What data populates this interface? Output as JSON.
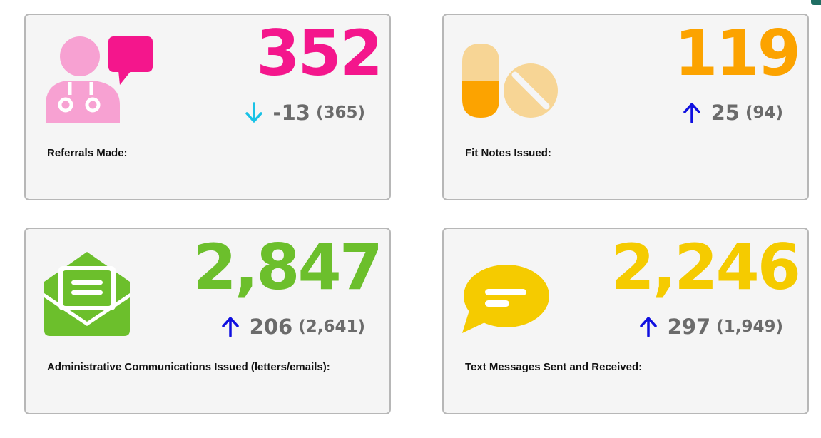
{
  "colors": {
    "pink": "#f4168c",
    "pink_light": "#f7a1d2",
    "orange": "#fca300",
    "orange_light": "#f7d595",
    "green": "#6cbf2c",
    "yellow": "#f5cb00",
    "arrow_up": "#1010e0",
    "arrow_down": "#19c2e6",
    "card_bg": "#f5f5f5",
    "card_border": "#b7b7b7",
    "muted_text": "#6b6b6b"
  },
  "cards": [
    {
      "id": "referrals",
      "icon": "doctor-chat-icon",
      "value": "352",
      "color": "#f4168c",
      "trend": "down",
      "change": "-13",
      "previous": "(365)",
      "label": "Referrals Made:"
    },
    {
      "id": "fit-notes",
      "icon": "pills-icon",
      "value": "119",
      "color": "#fca300",
      "trend": "up",
      "change": "25",
      "previous": "(94)",
      "label": "Fit Notes Issued:"
    },
    {
      "id": "admin-comms",
      "icon": "envelope-letter-icon",
      "value": "2,847",
      "color": "#6cbf2c",
      "trend": "up",
      "change": "206",
      "previous": "(2,641)",
      "label": "Administrative Communications Issued (letters/emails):"
    },
    {
      "id": "text-messages",
      "icon": "speech-bubble-icon",
      "value": "2,246",
      "color": "#f5cb00",
      "trend": "up",
      "change": "297",
      "previous": "(1,949)",
      "label": "Text Messages Sent and Received:"
    }
  ]
}
